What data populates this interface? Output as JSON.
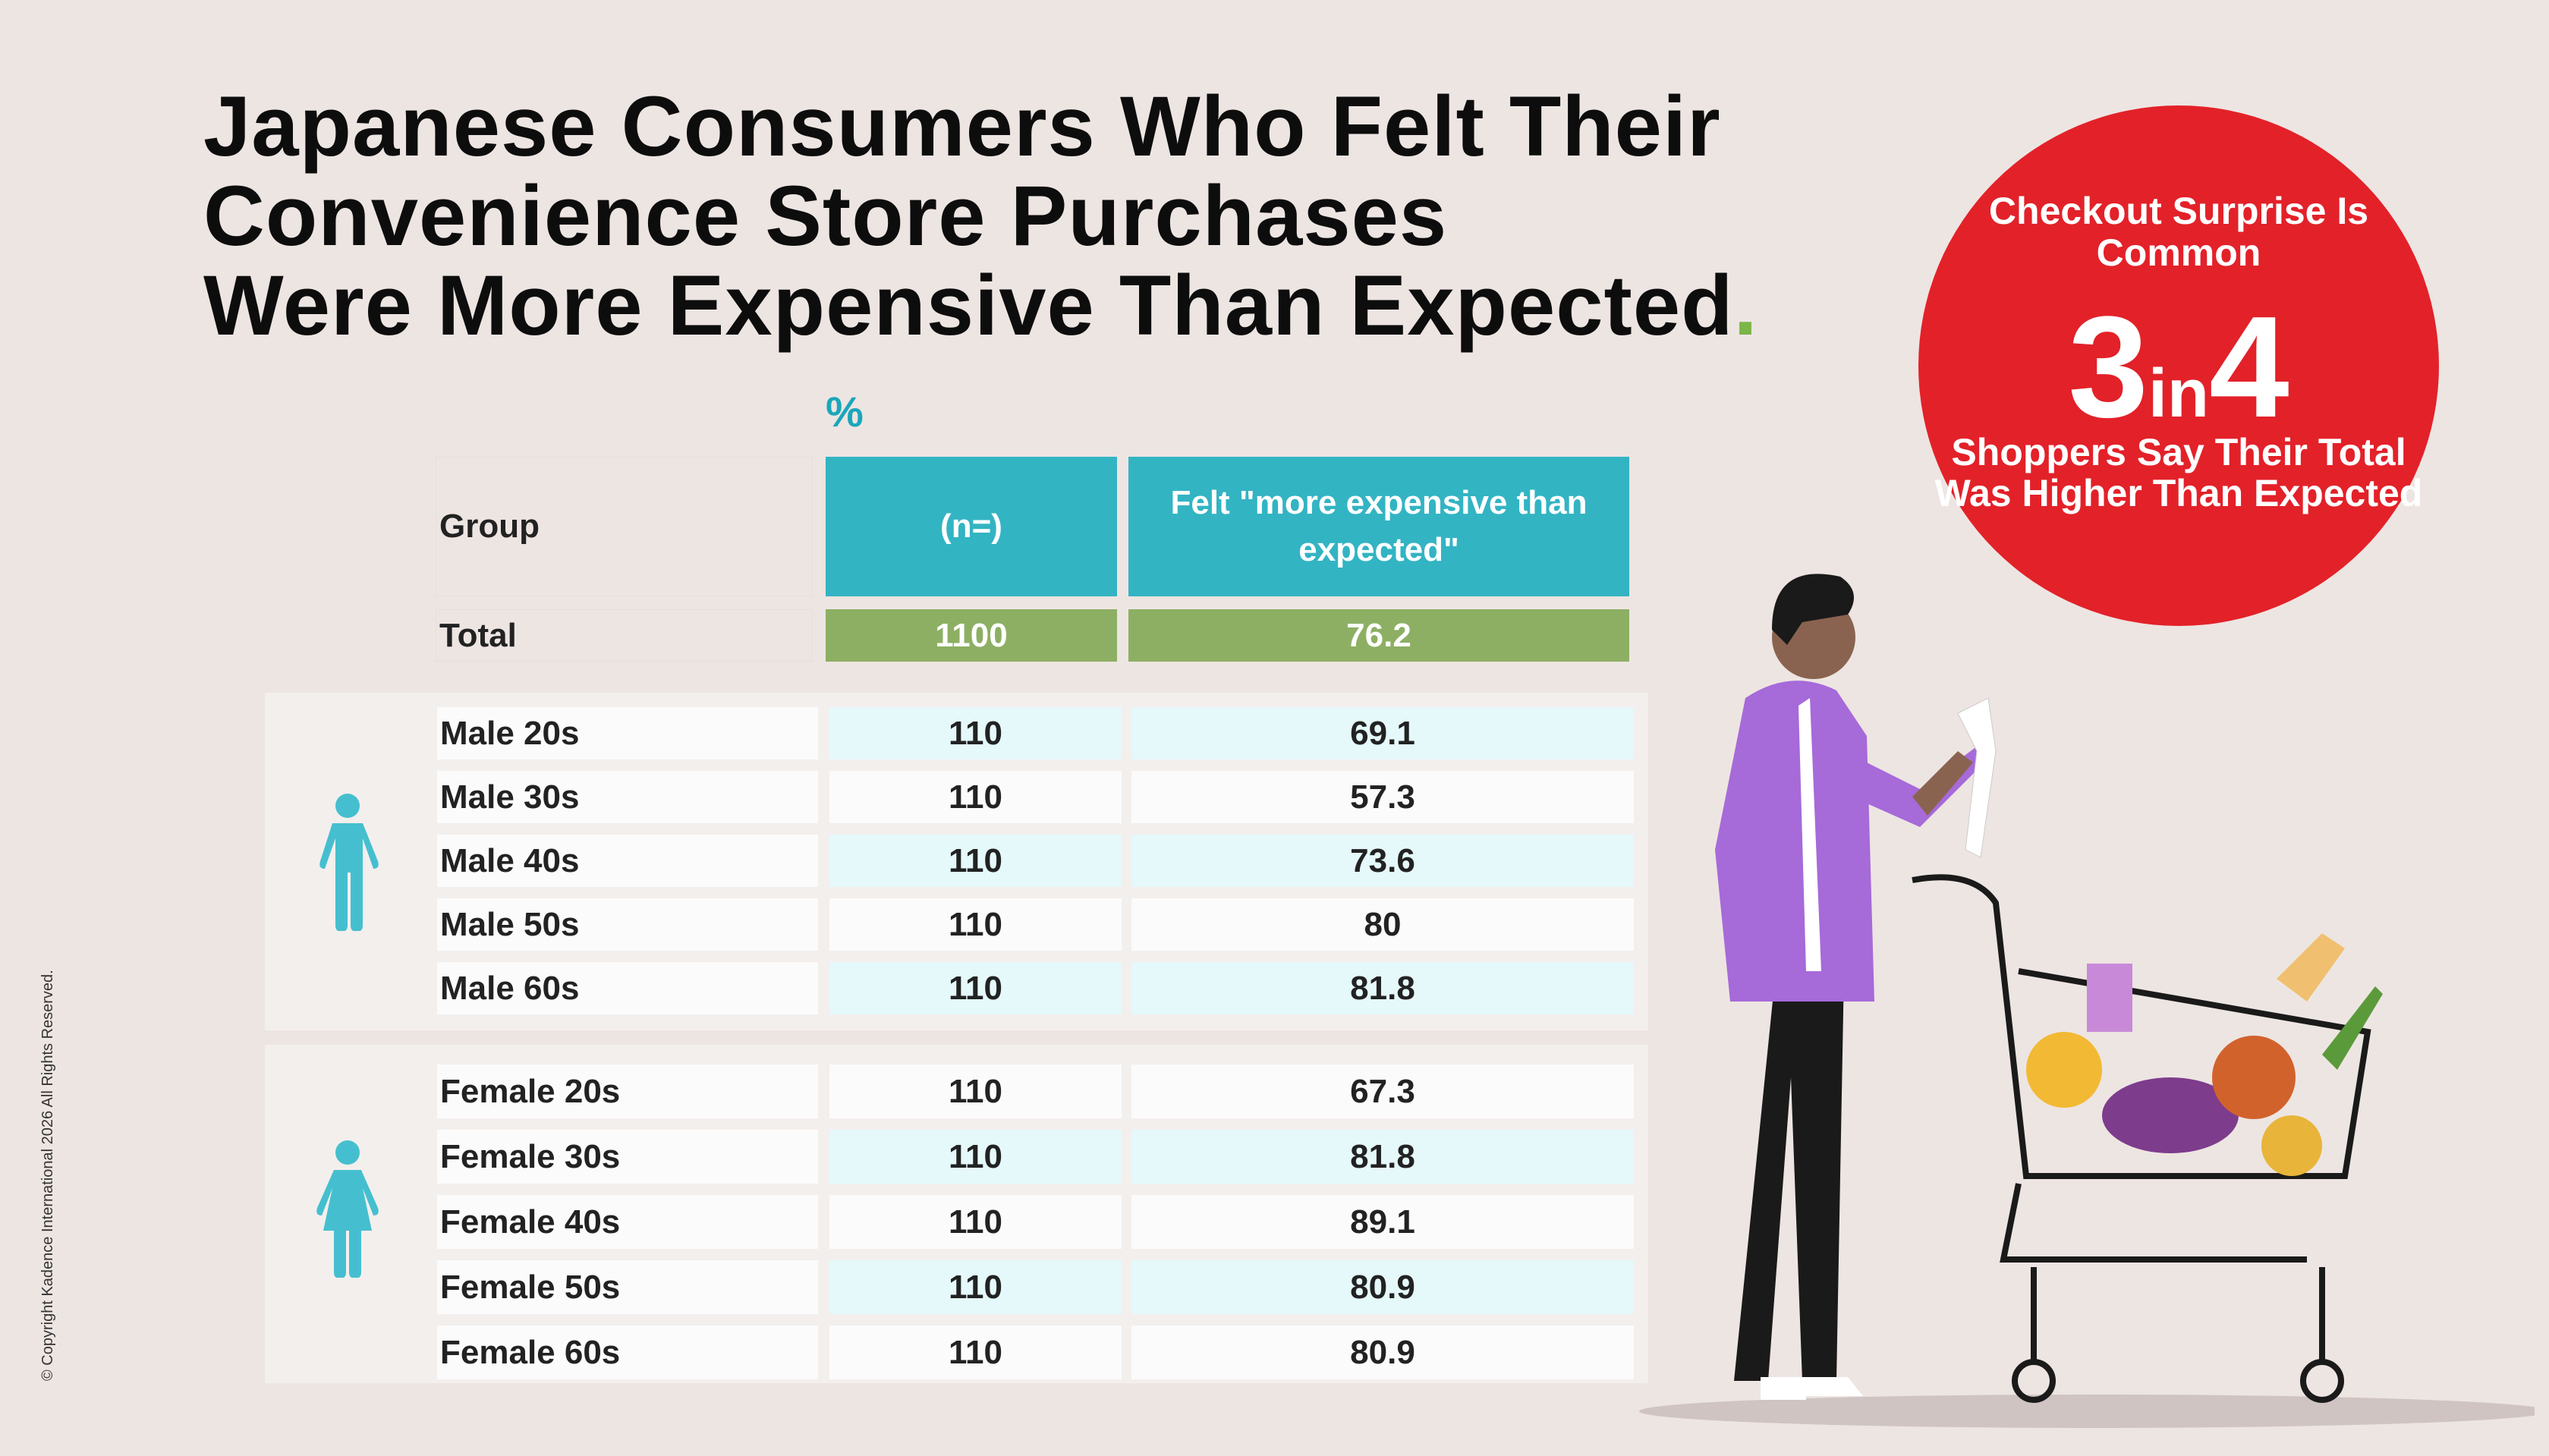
{
  "title": {
    "lines": [
      "Japanese Consumers Who Felt Their",
      "Convenience Store Purchases",
      "Were More Expensive Than Expected"
    ],
    "dot": "."
  },
  "callout": {
    "top": "Checkout Surprise Is Common",
    "big_left": "3",
    "big_mid": "in",
    "big_right": "4",
    "bottom": "Shoppers Say Their Total Was Higher Than Expected",
    "color": "#e32129"
  },
  "unit_label": "%",
  "table": {
    "headers": [
      "Group",
      "(n=)",
      "Felt \"more expensive than expected\""
    ],
    "total": {
      "label": "Total",
      "n": "1100",
      "value": "76.2"
    },
    "male": {
      "icon": "male-person-icon",
      "rows": [
        {
          "label": "Male 20s",
          "n": "110",
          "value": "69.1"
        },
        {
          "label": "Male 30s",
          "n": "110",
          "value": "57.3"
        },
        {
          "label": "Male 40s",
          "n": "110",
          "value": "73.6"
        },
        {
          "label": "Male 50s",
          "n": "110",
          "value": "80"
        },
        {
          "label": "Male 60s",
          "n": "110",
          "value": "81.8"
        }
      ]
    },
    "female": {
      "icon": "female-person-icon",
      "rows": [
        {
          "label": "Female 20s",
          "n": "110",
          "value": "67.3"
        },
        {
          "label": "Female 30s",
          "n": "110",
          "value": "81.8"
        },
        {
          "label": "Female 40s",
          "n": "110",
          "value": "89.1"
        },
        {
          "label": "Female 50s",
          "n": "110",
          "value": "80.9"
        },
        {
          "label": "Female 60s",
          "n": "110",
          "value": "80.9"
        }
      ]
    }
  },
  "colors": {
    "header": "#33b4c3",
    "total": "#8daf63",
    "accent_teal": "#1ba6bb",
    "row_tint": "#e5f8fa"
  },
  "illustration": "shopper-with-cart-reading-receipt",
  "copyright": "© Copyright Kadence International 2026 All Rights Reserved."
}
